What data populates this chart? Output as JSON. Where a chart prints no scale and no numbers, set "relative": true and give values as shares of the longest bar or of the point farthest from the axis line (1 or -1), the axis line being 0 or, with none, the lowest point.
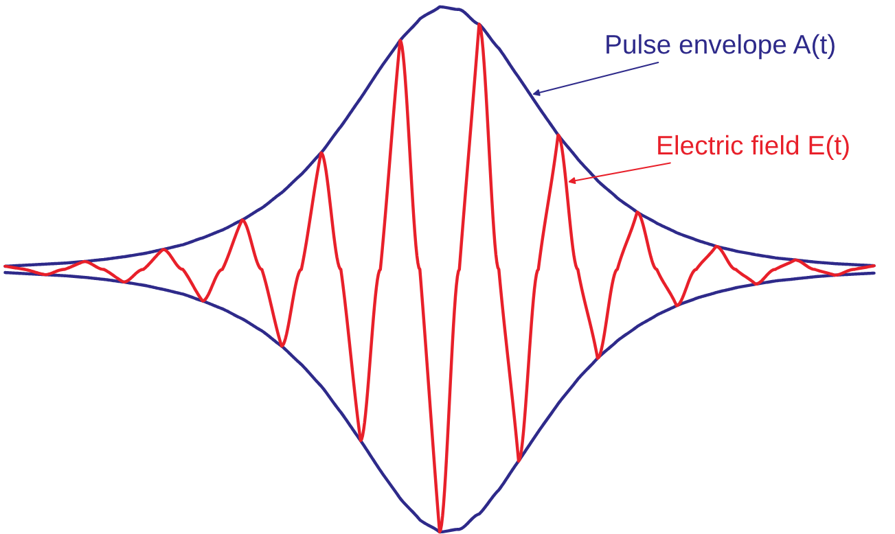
{
  "chart_data": {
    "type": "line",
    "relative": true,
    "legend": false,
    "marker": "none",
    "line_style": "solid",
    "categories": [
      null,
      null,
      null,
      null,
      null,
      null,
      null,
      null,
      null,
      null,
      null,
      null,
      null,
      null,
      null,
      null,
      null,
      null,
      null,
      null,
      null,
      null,
      null,
      null,
      null,
      null,
      null,
      null,
      null,
      null,
      null,
      null,
      null,
      null,
      null,
      null,
      null,
      null,
      null,
      null,
      null,
      null,
      null,
      null,
      null
    ],
    "series": [
      {
        "name": "Pulse envelope A(t)",
        "color": "#2e2a8a",
        "values": [
          0.506,
          0.508,
          0.51,
          0.512,
          0.515,
          0.519,
          0.524,
          0.53,
          0.538,
          0.547,
          0.56,
          0.575,
          0.594,
          0.617,
          0.646,
          0.681,
          0.722,
          0.772,
          0.826,
          0.883,
          0.936,
          0.977,
          1.0,
          0.995,
          0.967,
          0.921,
          0.866,
          0.81,
          0.756,
          0.71,
          0.669,
          0.636,
          0.609,
          0.588,
          0.57,
          0.556,
          0.544,
          0.535,
          0.528,
          0.522,
          0.518,
          0.514,
          0.511,
          0.509,
          0.507
        ]
      },
      {
        "color": "#2e2a8a",
        "values": [
          0.494,
          0.492,
          0.49,
          0.488,
          0.485,
          0.481,
          0.476,
          0.47,
          0.462,
          0.453,
          0.44,
          0.425,
          0.406,
          0.383,
          0.354,
          0.319,
          0.278,
          0.228,
          0.174,
          0.117,
          0.064,
          0.023,
          0.0,
          0.005,
          0.034,
          0.08,
          0.135,
          0.191,
          0.244,
          0.291,
          0.331,
          0.364,
          0.391,
          0.413,
          0.431,
          0.445,
          0.456,
          0.465,
          0.472,
          0.478,
          0.482,
          0.486,
          0.489,
          0.491,
          0.493
        ]
      },
      {
        "name": "Electric field E(t)",
        "color": "#e8202a",
        "values": [
          0.506,
          0.5,
          0.49,
          0.5,
          0.515,
          0.5,
          0.476,
          0.5,
          0.538,
          0.5,
          0.44,
          0.5,
          0.594,
          0.5,
          0.354,
          0.5,
          0.722,
          0.5,
          0.174,
          0.5,
          0.936,
          0.5,
          0.0,
          0.5,
          0.967,
          0.5,
          0.135,
          0.5,
          0.756,
          0.5,
          0.331,
          0.5,
          0.609,
          0.5,
          0.431,
          0.5,
          0.544,
          0.5,
          0.472,
          0.5,
          0.518,
          0.5,
          0.489,
          0.5,
          0.507
        ]
      }
    ]
  }
}
